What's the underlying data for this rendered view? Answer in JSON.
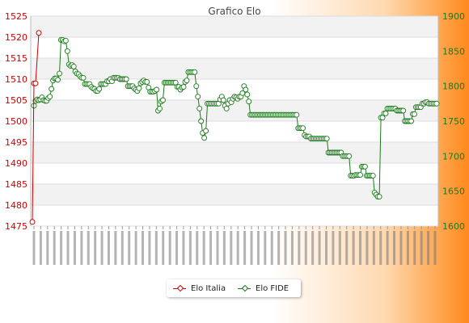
{
  "chart_data": {
    "type": "line",
    "title": "Grafico Elo",
    "y_left": {
      "min": 1475,
      "max": 1525,
      "step": 5,
      "color": "#cc0000",
      "ticks": [
        "1475",
        "1480",
        "1485",
        "1490",
        "1495",
        "1500",
        "1505",
        "1510",
        "1515",
        "1520",
        "1525"
      ]
    },
    "y_right": {
      "min": 1600,
      "max": 1900,
      "step": 50,
      "color": "#1a7a1a",
      "ticks": [
        "1600",
        "1650",
        "1700",
        "1750",
        "1800",
        "1850",
        "1900"
      ]
    },
    "grid": true,
    "legend_position": "bottom",
    "series": [
      {
        "name": "Elo Italia",
        "axis": "left",
        "color": "#cc0000",
        "points": [
          [
            0,
            1476
          ],
          [
            1,
            1509
          ],
          [
            2,
            1509
          ],
          [
            3,
            1521
          ]
        ]
      },
      {
        "name": "Elo FIDE",
        "axis": "right",
        "color": "#1a7a1a",
        "values": [
          1772,
          1779,
          1781,
          1780,
          1781,
          1784,
          1780,
          1779,
          1779,
          1783,
          1785,
          1796,
          1808,
          1811,
          1811,
          1809,
          1818,
          1866,
          1866,
          1864,
          1865,
          1850,
          1831,
          1829,
          1830,
          1828,
          1821,
          1818,
          1817,
          1814,
          1812,
          1812,
          1803,
          1803,
          1803,
          1803,
          1799,
          1797,
          1796,
          1793,
          1793,
          1796,
          1803,
          1803,
          1803,
          1803,
          1807,
          1807,
          1810,
          1807,
          1812,
          1812,
          1812,
          1812,
          1810,
          1810,
          1810,
          1810,
          1810,
          1800,
          1800,
          1800,
          1800,
          1797,
          1795,
          1793,
          1797,
          1804,
          1806,
          1808,
          1806,
          1806,
          1798,
          1792,
          1792,
          1792,
          1793,
          1795,
          1765,
          1768,
          1778,
          1780,
          1805,
          1805,
          1805,
          1805,
          1805,
          1805,
          1805,
          1805,
          1799,
          1799,
          1795,
          1798,
          1799,
          1806,
          1808,
          1820,
          1820,
          1820,
          1820,
          1820,
          1800,
          1785,
          1768,
          1750,
          1733,
          1726,
          1736,
          1775,
          1775,
          1775,
          1775,
          1775,
          1775,
          1775,
          1775,
          1781,
          1785,
          1780,
          1772,
          1768,
          1775,
          1780,
          1777,
          1782,
          1785,
          1784,
          1782,
          1785,
          1785,
          1790,
          1800,
          1795,
          1788,
          1778,
          1759,
          1759,
          1759,
          1759,
          1759,
          1759,
          1759,
          1759,
          1759,
          1759,
          1759,
          1759,
          1759,
          1759,
          1759,
          1759,
          1759,
          1759,
          1759,
          1759,
          1759,
          1759,
          1759,
          1759,
          1759,
          1759,
          1759,
          1759,
          1759,
          1759,
          1740,
          1740,
          1740,
          1740,
          1730,
          1728,
          1728,
          1728,
          1725,
          1725,
          1725,
          1725,
          1725,
          1725,
          1725,
          1725,
          1725,
          1725,
          1725,
          1705,
          1705,
          1705,
          1705,
          1705,
          1705,
          1705,
          1705,
          1705,
          1700,
          1700,
          1700,
          1700,
          1700,
          1672,
          1672,
          1672,
          1673,
          1673,
          1673,
          1673,
          1685,
          1685,
          1685,
          1672,
          1672,
          1672,
          1672,
          1672,
          1648,
          1645,
          1642,
          1642,
          1755,
          1755,
          1761,
          1761,
          1768,
          1768,
          1768,
          1768,
          1768,
          1768,
          1765,
          1765,
          1765,
          1765,
          1765,
          1750,
          1750,
          1750,
          1750,
          1750,
          1760,
          1760,
          1770,
          1770,
          1770,
          1770,
          1775,
          1775,
          1777,
          1777,
          1775,
          1775,
          1775,
          1775,
          1775,
          1775
        ]
      }
    ],
    "x_tick_count": 60
  },
  "legend": {
    "items": [
      "Elo Italia",
      "Elo FIDE"
    ]
  },
  "colors": {
    "plot_band_light": "#f2f2f2",
    "plot_band_white": "#ffffff",
    "grid": "#dcdcdc"
  }
}
